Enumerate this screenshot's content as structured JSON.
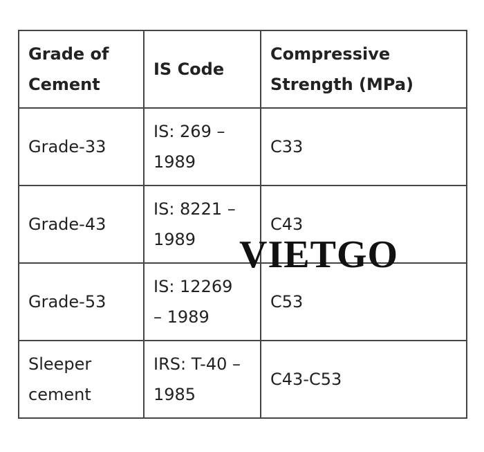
{
  "table": {
    "header": [
      "Grade of Cement",
      "IS Code",
      "Compressive Strength (MPa)"
    ],
    "rows": [
      [
        "Grade-33",
        "IS: 269 – 1989",
        "C33"
      ],
      [
        "Grade-43",
        "IS: 8221 – 1989",
        "C43"
      ],
      [
        "Grade-53",
        "IS: 12269 – 1989",
        "C53"
      ],
      [
        "Sleeper cement",
        "IRS: T-40 – 1985",
        "C43-C53"
      ]
    ]
  },
  "watermark": "VIETGO"
}
